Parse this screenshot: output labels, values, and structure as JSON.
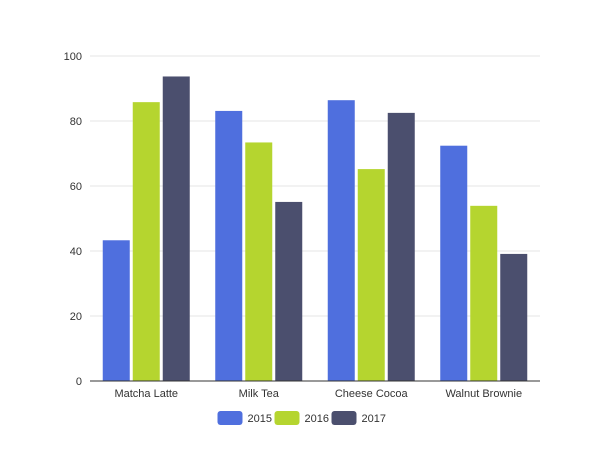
{
  "chart_data": {
    "type": "bar",
    "categories": [
      "Matcha Latte",
      "Milk Tea",
      "Cheese Cocoa",
      "Walnut Brownie"
    ],
    "series": [
      {
        "name": "2015",
        "color": "#4f6fde",
        "values": [
          43.3,
          83.1,
          86.4,
          72.4
        ]
      },
      {
        "name": "2016",
        "color": "#b5d52f",
        "values": [
          85.8,
          73.4,
          65.2,
          53.9
        ]
      },
      {
        "name": "2017",
        "color": "#4b4f6e",
        "values": [
          93.7,
          55.1,
          82.5,
          39.1
        ]
      }
    ],
    "title": "",
    "xlabel": "",
    "ylabel": "",
    "ylim": [
      0,
      100
    ],
    "yticks": [
      "0",
      "20",
      "40",
      "60",
      "80",
      "100"
    ],
    "grid": true,
    "legend_position": "bottom"
  }
}
